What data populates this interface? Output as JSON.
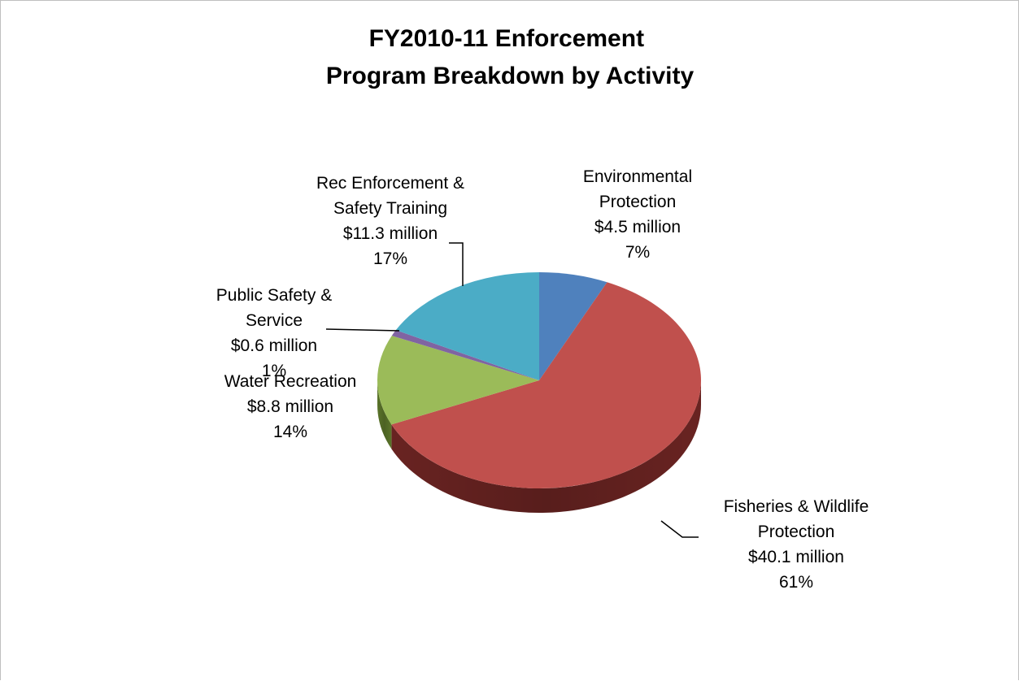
{
  "chart_data": {
    "type": "pie",
    "title": [
      "FY2010-11 Enforcement",
      "Program Breakdown by Activity"
    ],
    "slices": [
      {
        "name": "Environmental Protection",
        "value": 4.5,
        "percent": 7,
        "color": "#4f81bd",
        "side_color": "#34567f",
        "label_lines": [
          "Environmental",
          "Protection",
          "$4.5 million",
          "7%"
        ]
      },
      {
        "name": "Fisheries & Wildlife Protection",
        "value": 40.1,
        "percent": 61,
        "color": "#c0504d",
        "side_color": "#6e2523",
        "label_lines": [
          "Fisheries & Wildlife",
          "Protection",
          "$40.1 million",
          "61%"
        ]
      },
      {
        "name": "Water Recreation",
        "value": 8.8,
        "percent": 14,
        "color": "#9bbb59",
        "side_color": "#5f7a2c",
        "label_lines": [
          "Water Recreation",
          "$8.8 million",
          "14%"
        ]
      },
      {
        "name": "Public Safety & Service",
        "value": 0.6,
        "percent": 1,
        "color": "#8064a2",
        "side_color": "#4e3a66",
        "label_lines": [
          "Public Safety &",
          "Service",
          "$0.6 million",
          "1%"
        ]
      },
      {
        "name": "Rec Enforcement & Safety Training",
        "value": 11.3,
        "percent": 17,
        "color": "#4bacc6",
        "side_color": "#2b6f82",
        "label_lines": [
          "Rec Enforcement &",
          "Safety Training",
          "$11.3 million",
          "17%"
        ]
      }
    ],
    "style": "3d-pie",
    "legend": "none",
    "data_labels": "outside"
  }
}
